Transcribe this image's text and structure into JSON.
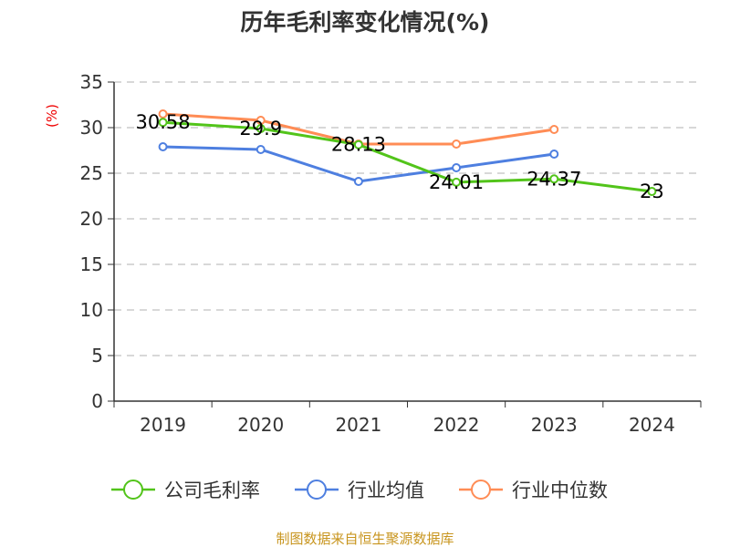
{
  "chart_data": {
    "type": "line",
    "title": "历年毛利率变化情况(%)",
    "ylabel": "(%)",
    "xlabel": "",
    "ylim": [
      0,
      35
    ],
    "yticks": [
      0,
      5,
      10,
      15,
      20,
      25,
      30,
      35
    ],
    "categories": [
      "2019",
      "2020",
      "2021",
      "2022",
      "2023",
      "2024"
    ],
    "grid": true,
    "legend_position": "bottom",
    "series": [
      {
        "name": "公司毛利率",
        "color": "#52c41a",
        "values": [
          30.58,
          29.9,
          28.13,
          24.01,
          24.37,
          23
        ],
        "labels": [
          "30.58",
          "29.9",
          "28.13",
          "24.01",
          "24.37",
          "23"
        ]
      },
      {
        "name": "行业均值",
        "color": "#4e7fe0",
        "values": [
          27.9,
          27.6,
          24.1,
          25.6,
          27.1,
          null
        ]
      },
      {
        "name": "行业中位数",
        "color": "#ff8c55",
        "values": [
          31.5,
          30.8,
          28.2,
          28.2,
          29.8,
          null
        ]
      }
    ],
    "source": "制图数据来自恒生聚源数据库"
  }
}
